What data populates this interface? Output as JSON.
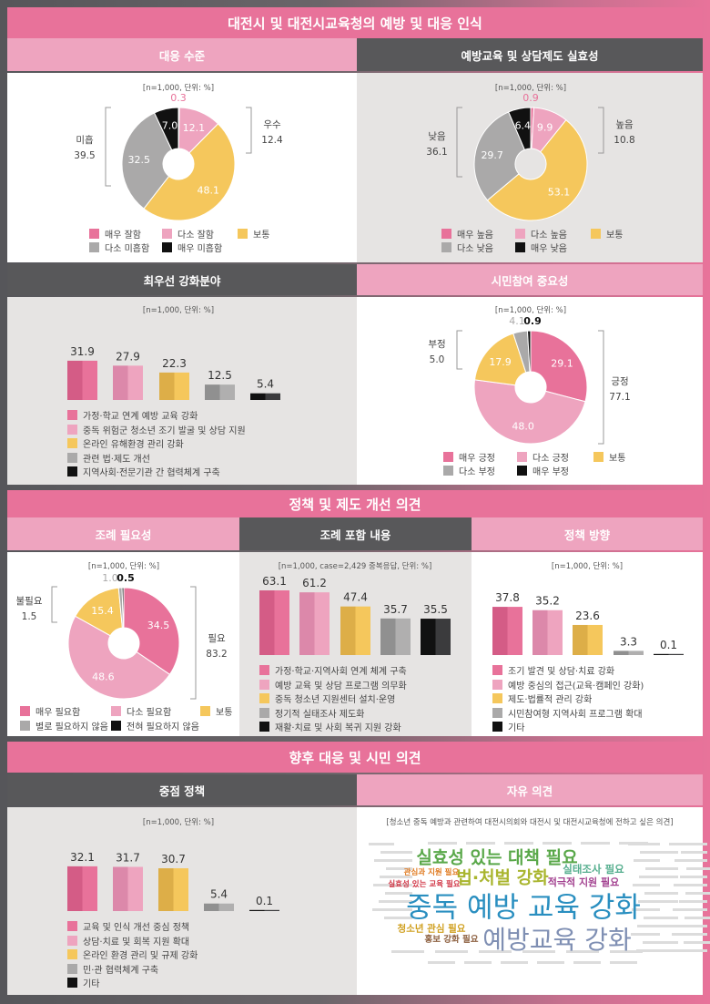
{
  "sections": [
    {
      "title": "대전시 및 대전시교육청의 예방 및 대응 인식"
    },
    {
      "title": "정책 및 제도 개선 의견"
    },
    {
      "title": "향후 대응 및 시민 의견"
    }
  ],
  "colors": {
    "strong_pink": "#e8729a",
    "light_pink": "#eea4bf",
    "yellow": "#f5c75c",
    "gray": "#aaa9a9",
    "black": "#111111",
    "dark_header": "#58585a"
  },
  "chart_data": [
    {
      "title": "대응 수준",
      "type": "pie",
      "note": "[n=1,000, 단위: %]",
      "categories": [
        "매우 잘함",
        "다소 잘함",
        "보통",
        "다소 미흡함",
        "매우 미흡함"
      ],
      "values": [
        0.3,
        12.1,
        48.1,
        32.5,
        7.0
      ],
      "groups": [
        {
          "label": "우수",
          "value": "12.4"
        },
        {
          "label": "미흡",
          "value": "39.5"
        }
      ]
    },
    {
      "title": "예방교육 및 상담제도 실효성",
      "type": "pie",
      "note": "[n=1,000, 단위: %]",
      "categories": [
        "매우 높음",
        "다소 높음",
        "보통",
        "다소 낮음",
        "매우 낮음"
      ],
      "values": [
        0.9,
        9.9,
        53.1,
        29.7,
        6.4
      ],
      "groups": [
        {
          "label": "높음",
          "value": "10.8"
        },
        {
          "label": "낮음",
          "value": "36.1"
        }
      ]
    },
    {
      "title": "최우선 강화분야",
      "type": "bar",
      "note": "[n=1,000, 단위: %]",
      "categories": [
        "가정·학교 연계 예방 교육 강화",
        "중독 위험군 청소년 조기 발굴 및 상담 지원",
        "온라인 유해환경 관리 강화",
        "관련 법·제도 개선",
        "지역사회·전문기관 간 협력체계 구축"
      ],
      "values": [
        31.9,
        27.9,
        22.3,
        12.5,
        5.4
      ]
    },
    {
      "title": "시민참여 중요성",
      "type": "pie",
      "note": "[n=1,000, 단위: %]",
      "categories": [
        "매우 긍정",
        "다소 긍정",
        "보통",
        "다소 부정",
        "매우 부정"
      ],
      "values": [
        29.1,
        48.0,
        17.9,
        4.1,
        0.9
      ],
      "groups": [
        {
          "label": "부정",
          "value": "5.0"
        },
        {
          "label": "긍정",
          "value": "77.1"
        }
      ]
    },
    {
      "title": "조례 필요성",
      "type": "pie",
      "note": "[n=1,000, 단위: %]",
      "categories": [
        "매우 필요함",
        "다소 필요함",
        "보통",
        "별로 필요하지 않음",
        "전혀 필요하지 않음"
      ],
      "values": [
        34.5,
        48.6,
        15.4,
        1.0,
        0.5
      ],
      "groups": [
        {
          "label": "불필요",
          "value": "1.5"
        },
        {
          "label": "필요",
          "value": "83.2"
        }
      ]
    },
    {
      "title": "조례 포함 내용",
      "type": "bar",
      "note": "[n=1,000, case=2,429 중복응답, 단위: %]",
      "categories": [
        "가정·학교·지역사회 연계 체계 구축",
        "예방 교육 및 상담 프로그램 의무화",
        "중독 청소년 지원센터 설치·운영",
        "정기적 실태조사 제도화",
        "재활·치료 및 사회 복귀 지원 강화"
      ],
      "values": [
        63.1,
        61.2,
        47.4,
        35.7,
        35.5
      ]
    },
    {
      "title": "정책 방향",
      "type": "bar",
      "note": "[n=1,000, 단위: %]",
      "categories": [
        "조기 발견 및 상담·치료 강화",
        "예방 중심의 접근(교육·캠페인 강화)",
        "제도·법률적 관리 강화",
        "시민참여형 지역사회 프로그램 확대",
        "기타"
      ],
      "values": [
        37.8,
        35.2,
        23.6,
        3.3,
        0.1
      ]
    },
    {
      "title": "중점 정책",
      "type": "bar",
      "note": "[n=1,000, 단위: %]",
      "categories": [
        "교육 및 인식 개선 중심 정책",
        "상담·치료 및 회복 지원 확대",
        "온라인 환경 관리 및 규제 강화",
        "민·관 협력체계 구축",
        "기타"
      ],
      "values": [
        32.1,
        31.7,
        30.7,
        5.4,
        0.1
      ]
    }
  ],
  "free_opinion": {
    "title": "자유 의견",
    "note": "[청소년 중독 예방과 관련하여 대전시의회와 대전시 및 대전시교육청에 전하고 싶은 의견]",
    "words": [
      {
        "text": "중독 예방 교육 강화",
        "color": "#2a8fc0"
      },
      {
        "text": "예방교육 강화",
        "color": "#7f8fb3"
      },
      {
        "text": "실효성 있는 대책 필요",
        "color": "#5aa84a"
      },
      {
        "text": "법·처벌 강화",
        "color": "#a9b52e"
      },
      {
        "text": "실태조사 필요",
        "color": "#55ae8e"
      },
      {
        "text": "적극적 지원 필요",
        "color": "#a2408f"
      },
      {
        "text": "관심과 지원 필요",
        "color": "#e07a20"
      },
      {
        "text": "실효성 있는 교육 필요",
        "color": "#d03545"
      },
      {
        "text": "청소년 관심 필요",
        "color": "#d0a020"
      },
      {
        "text": "홍보 강화 필요",
        "color": "#8d6040"
      }
    ]
  }
}
